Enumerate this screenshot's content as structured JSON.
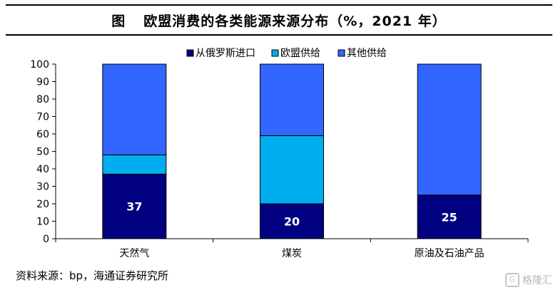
{
  "header": {
    "figure_label": "图",
    "title": "欧盟消费的各类能源来源分布（%，2021 年）"
  },
  "source": "资料来源：bp，海通证券研究所",
  "watermark": {
    "text": "格隆汇",
    "icon": "G"
  },
  "chart_data": {
    "type": "bar",
    "stacked": true,
    "title": "欧盟消费的各类能源来源分布（%，2021 年）",
    "categories": [
      "天然气",
      "煤炭",
      "原油及石油产品"
    ],
    "series": [
      {
        "name": "从俄罗斯进口",
        "values": [
          37,
          20,
          25
        ],
        "color": "#000080"
      },
      {
        "name": "欧盟供给",
        "values": [
          11,
          39,
          0
        ],
        "color": "#00aeef"
      },
      {
        "name": "其他供给",
        "values": [
          52,
          41,
          75
        ],
        "color": "#3366ff"
      }
    ],
    "data_labels": [
      "37",
      "20",
      "25"
    ],
    "ylim": [
      0,
      100
    ],
    "yticks": [
      "0",
      "10",
      "20",
      "30",
      "40",
      "50",
      "60",
      "70",
      "80",
      "90",
      "100"
    ],
    "grid": false,
    "legend_position": "top"
  }
}
